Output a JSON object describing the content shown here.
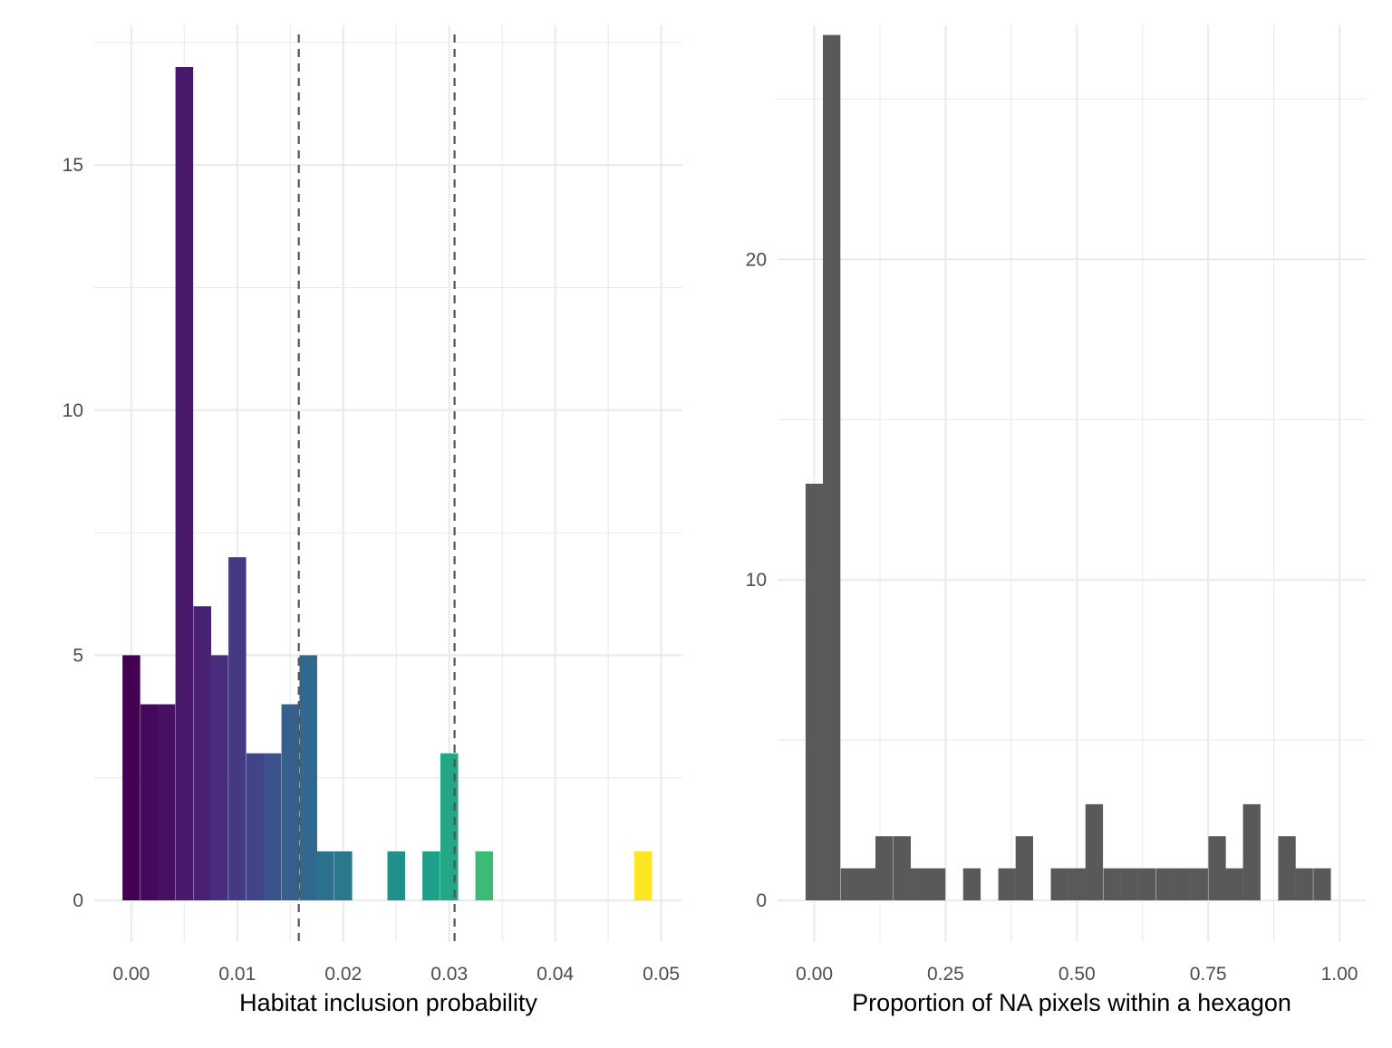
{
  "chart_data": [
    {
      "type": "bar",
      "panel": "left",
      "xlabel": "Habitat inclusion probability",
      "ylabel": "",
      "xlim": [
        -0.0035,
        0.052
      ],
      "ylim": [
        -0.85,
        17.85
      ],
      "x_ticks": [
        0.0,
        0.01,
        0.02,
        0.03,
        0.04,
        0.05
      ],
      "x_tick_labels": [
        "0.00",
        "0.01",
        "0.02",
        "0.03",
        "0.04",
        "0.05"
      ],
      "y_ticks": [
        0,
        5,
        10,
        15
      ],
      "y_tick_labels": [
        "0",
        "5",
        "10",
        "15"
      ],
      "grid": true,
      "bins": [
        {
          "x": 0.0,
          "value": 5,
          "color": "#440154"
        },
        {
          "x": 0.0017,
          "value": 4,
          "color": "#46085c"
        },
        {
          "x": 0.0033,
          "value": 4,
          "color": "#471063"
        },
        {
          "x": 0.005,
          "value": 17,
          "color": "#48196b"
        },
        {
          "x": 0.0067,
          "value": 6,
          "color": "#482173"
        },
        {
          "x": 0.0083,
          "value": 5,
          "color": "#472d7b"
        },
        {
          "x": 0.01,
          "value": 7,
          "color": "#443a83"
        },
        {
          "x": 0.0117,
          "value": 3,
          "color": "#414487"
        },
        {
          "x": 0.0133,
          "value": 3,
          "color": "#3b528b"
        },
        {
          "x": 0.015,
          "value": 4,
          "color": "#355f8d"
        },
        {
          "x": 0.0167,
          "value": 5,
          "color": "#31688e"
        },
        {
          "x": 0.0183,
          "value": 1,
          "color": "#2d718e"
        },
        {
          "x": 0.02,
          "value": 1,
          "color": "#2a788e"
        },
        {
          "x": 0.025,
          "value": 1,
          "color": "#21918c"
        },
        {
          "x": 0.0283,
          "value": 1,
          "color": "#1fa088"
        },
        {
          "x": 0.03,
          "value": 3,
          "color": "#22a884"
        },
        {
          "x": 0.0333,
          "value": 1,
          "color": "#3bbb75"
        },
        {
          "x": 0.0483,
          "value": 1,
          "color": "#fde725"
        }
      ],
      "bin_width": 0.00167,
      "vlines": [
        0.0158,
        0.0305
      ],
      "vline_color": "#555555"
    },
    {
      "type": "bar",
      "panel": "right",
      "xlabel": "Proportion of NA pixels within a hexagon",
      "ylabel": "",
      "xlim": [
        -0.07,
        1.05
      ],
      "ylim": [
        -1.3,
        27.3
      ],
      "x_ticks": [
        0.0,
        0.25,
        0.5,
        0.75,
        1.0
      ],
      "x_tick_labels": [
        "0.00",
        "0.25",
        "0.50",
        "0.75",
        "1.00"
      ],
      "y_ticks": [
        0,
        10,
        20
      ],
      "y_tick_labels": [
        "0",
        "10",
        "20"
      ],
      "grid": true,
      "bar_color": "#595959",
      "bins": [
        {
          "x": 0.0,
          "value": 13
        },
        {
          "x": 0.033,
          "value": 27
        },
        {
          "x": 0.067,
          "value": 1
        },
        {
          "x": 0.1,
          "value": 1
        },
        {
          "x": 0.133,
          "value": 2
        },
        {
          "x": 0.167,
          "value": 2
        },
        {
          "x": 0.2,
          "value": 1
        },
        {
          "x": 0.233,
          "value": 1
        },
        {
          "x": 0.3,
          "value": 1
        },
        {
          "x": 0.367,
          "value": 1
        },
        {
          "x": 0.4,
          "value": 2
        },
        {
          "x": 0.467,
          "value": 1
        },
        {
          "x": 0.5,
          "value": 1
        },
        {
          "x": 0.533,
          "value": 3
        },
        {
          "x": 0.567,
          "value": 1
        },
        {
          "x": 0.6,
          "value": 1
        },
        {
          "x": 0.633,
          "value": 1
        },
        {
          "x": 0.667,
          "value": 1
        },
        {
          "x": 0.7,
          "value": 1
        },
        {
          "x": 0.733,
          "value": 1
        },
        {
          "x": 0.767,
          "value": 2
        },
        {
          "x": 0.8,
          "value": 1
        },
        {
          "x": 0.833,
          "value": 3
        },
        {
          "x": 0.9,
          "value": 2
        },
        {
          "x": 0.933,
          "value": 1
        },
        {
          "x": 0.967,
          "value": 1
        }
      ],
      "bin_width": 0.0333
    }
  ]
}
